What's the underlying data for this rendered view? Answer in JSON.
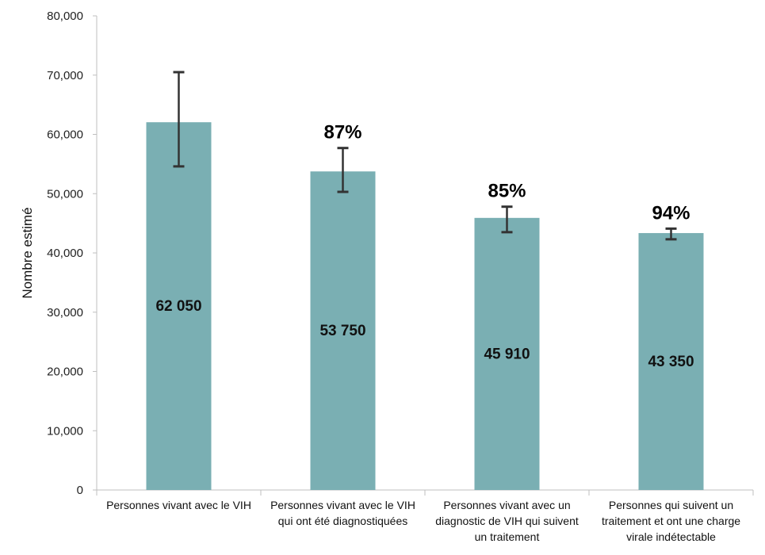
{
  "chart_data": {
    "type": "bar",
    "ylabel": "Nombre estimé",
    "ylim": [
      0,
      80000
    ],
    "yticks": [
      0,
      10000,
      20000,
      30000,
      40000,
      50000,
      60000,
      70000,
      80000
    ],
    "ytick_labels": [
      "0",
      "10,000",
      "20,000",
      "30,000",
      "40,000",
      "50,000",
      "60,000",
      "70,000",
      "80,000"
    ],
    "categories": [
      [
        "Personnes vivant avec le VIH"
      ],
      [
        "Personnes  vivant avec le VIH",
        "qui ont été diagnostiquées"
      ],
      [
        "Personnes vivant avec un",
        "diagnostic de VIH qui suivent",
        "un traitement"
      ],
      [
        "Personnes qui suivent un",
        "traitement et ont une charge",
        "virale indétectable"
      ]
    ],
    "values": [
      62050,
      53750,
      45910,
      43350
    ],
    "value_labels": [
      "62 050",
      "53 750",
      "45 910",
      "43 350"
    ],
    "error_low": [
      54600,
      50300,
      43500,
      42300
    ],
    "error_high": [
      70500,
      57700,
      47800,
      44100
    ],
    "percent_labels": [
      "",
      "87%",
      "85%",
      "94%"
    ],
    "bar_color": "#7aafb3",
    "error_bar_color": "#333333",
    "grid": false
  }
}
